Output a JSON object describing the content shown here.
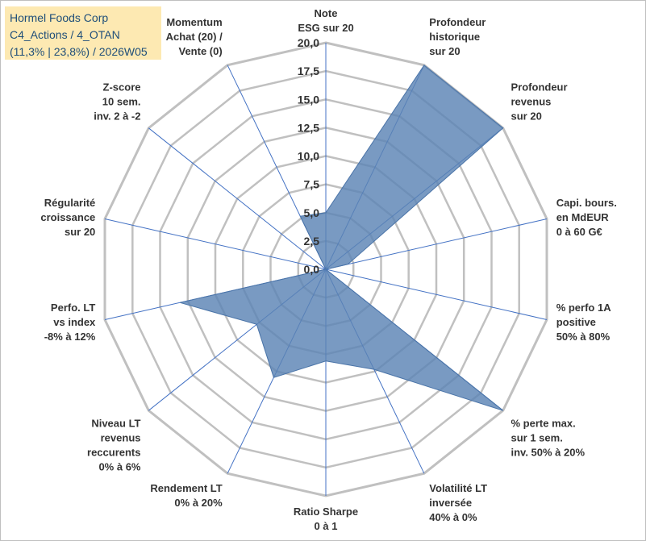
{
  "title_box": {
    "line1": "Hormel Foods Corp",
    "line2": "C4_Actions / 4_OTAN",
    "line3": "(11,3% | 23,8%) / 2026W05"
  },
  "chart_data": {
    "type": "radar",
    "title": "",
    "r_range": [
      0,
      20
    ],
    "r_ticks": [
      "0,0",
      "2,5",
      "5,0",
      "7,5",
      "10,0",
      "12,5",
      "15,0",
      "17,5",
      "20,0"
    ],
    "grid": true,
    "colors": {
      "fill": "#5b84b5",
      "fill_opacity": 0.82,
      "grid": "#c0c0c0",
      "spoke": "#4472c4"
    },
    "axes": [
      {
        "lines": [
          "Note",
          "ESG sur 20"
        ],
        "value": 5.0
      },
      {
        "lines": [
          "Profondeur",
          "historique",
          "sur 20"
        ],
        "value": 20.0
      },
      {
        "lines": [
          "Profondeur",
          "revenus",
          "sur 20"
        ],
        "value": 20.0
      },
      {
        "lines": [
          "Capi. bours.",
          "en MdEUR",
          "0 à 60 G€"
        ],
        "value": 2.0
      },
      {
        "lines": [
          "% perfo 1A",
          "positive",
          "50% à 80%"
        ],
        "value": 0.0
      },
      {
        "lines": [
          "% perte max.",
          "sur 1 sem.",
          "inv. 50% à 20%"
        ],
        "value": 20.0
      },
      {
        "lines": [
          "Volatilité LT",
          "inversée",
          "40% à 0%"
        ],
        "value": 9.8
      },
      {
        "lines": [
          "Ratio Sharpe",
          "0 à 1"
        ],
        "value": 8.1
      },
      {
        "lines": [
          "Rendement LT",
          "0% à 20%"
        ],
        "value": 10.6
      },
      {
        "lines": [
          "Niveau LT",
          "revenus",
          "reccurents",
          "0% à 6%"
        ],
        "value": 7.8
      },
      {
        "lines": [
          "Perfo. LT",
          "vs index",
          "-8% à 12%"
        ],
        "value": 13.2
      },
      {
        "lines": [
          "Régularité",
          "croissance",
          "sur 20"
        ],
        "value": 0.0
      },
      {
        "lines": [
          "Z-score",
          "10 sem.",
          "inv. 2 à -2"
        ],
        "value": 0.0
      },
      {
        "lines": [
          "Momentum",
          "Achat (20) /",
          "Vente (0)"
        ],
        "value": 5.2
      }
    ]
  }
}
